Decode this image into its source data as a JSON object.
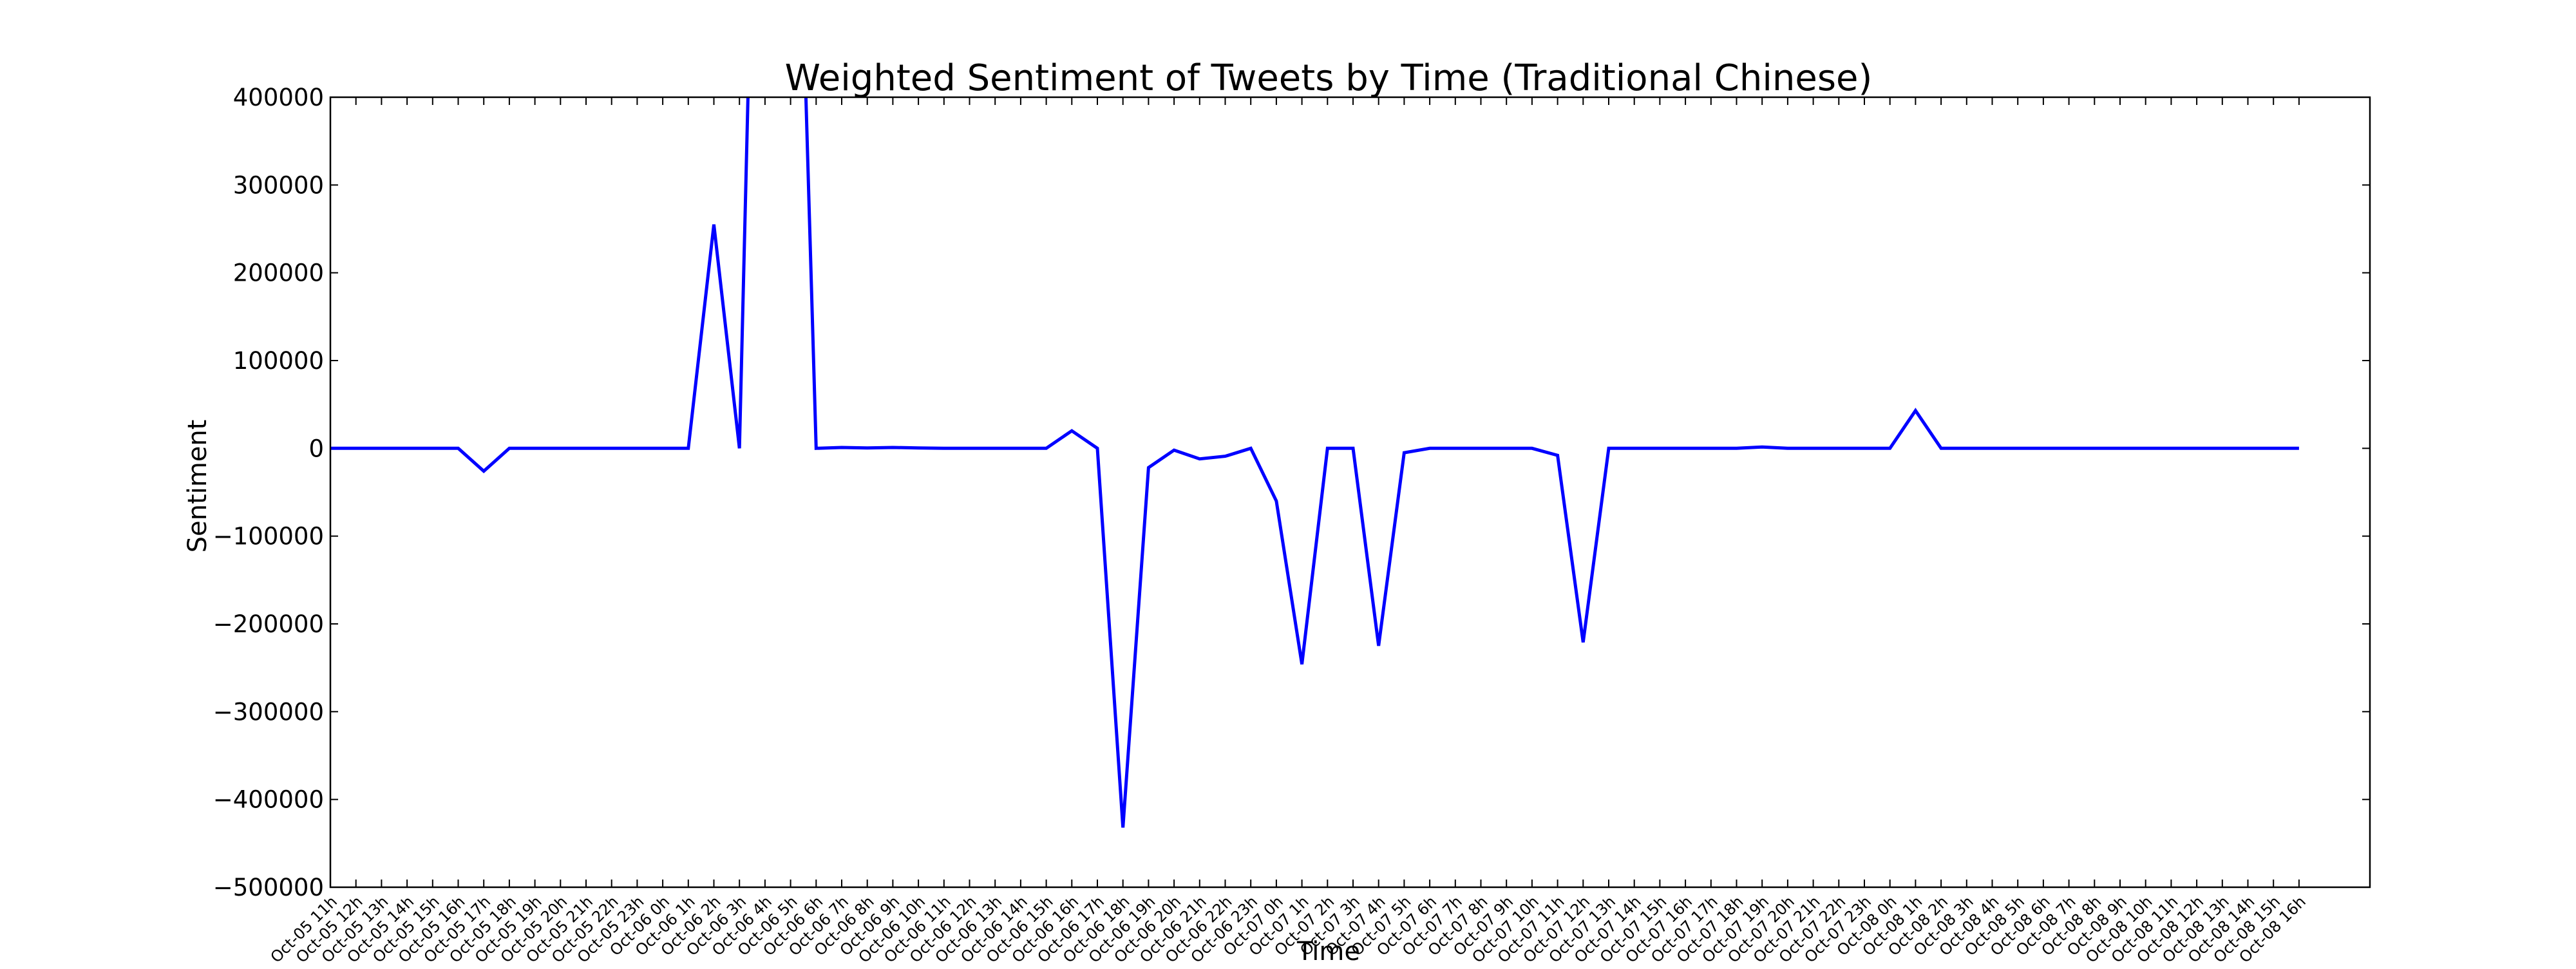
{
  "chart_data": {
    "type": "line",
    "title": "Weighted Sentiment of Tweets by Time (Traditional Chinese)",
    "xlabel": "Time",
    "ylabel": "Sentiment",
    "ylim": [
      -500000,
      400000
    ],
    "yticks": [
      400000,
      300000,
      200000,
      100000,
      0,
      -100000,
      -200000,
      -300000,
      -400000,
      -500000
    ],
    "ytick_labels": [
      "400000",
      "300000",
      "200000",
      "100000",
      "0",
      "−100000",
      "−200000",
      "−300000",
      "−400000",
      "−500000"
    ],
    "grid": false,
    "legend": "none",
    "line_color": "#0000ff",
    "categories": [
      "Oct-05 11h",
      "Oct-05 12h",
      "Oct-05 13h",
      "Oct-05 14h",
      "Oct-05 15h",
      "Oct-05 16h",
      "Oct-05 17h",
      "Oct-05 18h",
      "Oct-05 19h",
      "Oct-05 20h",
      "Oct-05 21h",
      "Oct-05 22h",
      "Oct-05 23h",
      "Oct-06 0h",
      "Oct-06 1h",
      "Oct-06 2h",
      "Oct-06 3h",
      "Oct-06 4h",
      "Oct-06 5h",
      "Oct-06 6h",
      "Oct-06 7h",
      "Oct-06 8h",
      "Oct-06 9h",
      "Oct-06 10h",
      "Oct-06 11h",
      "Oct-06 12h",
      "Oct-06 13h",
      "Oct-06 14h",
      "Oct-06 15h",
      "Oct-06 16h",
      "Oct-06 17h",
      "Oct-06 18h",
      "Oct-06 19h",
      "Oct-06 20h",
      "Oct-06 21h",
      "Oct-06 22h",
      "Oct-06 23h",
      "Oct-07 0h",
      "Oct-07 1h",
      "Oct-07 2h",
      "Oct-07 3h",
      "Oct-07 4h",
      "Oct-07 5h",
      "Oct-07 6h",
      "Oct-07 7h",
      "Oct-07 8h",
      "Oct-07 9h",
      "Oct-07 10h",
      "Oct-07 11h",
      "Oct-07 12h",
      "Oct-07 13h",
      "Oct-07 14h",
      "Oct-07 15h",
      "Oct-07 16h",
      "Oct-07 17h",
      "Oct-07 18h",
      "Oct-07 19h",
      "Oct-07 20h",
      "Oct-07 21h",
      "Oct-07 22h",
      "Oct-07 23h",
      "Oct-08 0h",
      "Oct-08 1h",
      "Oct-08 2h",
      "Oct-08 3h",
      "Oct-08 4h",
      "Oct-08 5h",
      "Oct-08 6h",
      "Oct-08 7h",
      "Oct-08 8h",
      "Oct-08 9h",
      "Oct-08 10h",
      "Oct-08 11h",
      "Oct-08 12h",
      "Oct-08 13h",
      "Oct-08 14h",
      "Oct-08 15h",
      "Oct-08 16h"
    ],
    "series": [
      {
        "values": [
          0,
          0,
          0,
          0,
          0,
          0,
          -26000,
          0,
          0,
          0,
          0,
          0,
          0,
          0,
          0,
          255000,
          0,
          1200000,
          1000000,
          0,
          1000,
          500,
          1000,
          500,
          0,
          0,
          0,
          0,
          0,
          20000,
          0,
          -432000,
          -22000,
          -2000,
          -12000,
          -9000,
          0,
          -60000,
          -246000,
          0,
          0,
          -225000,
          -5000,
          0,
          0,
          0,
          0,
          0,
          -8000,
          -221000,
          0,
          0,
          0,
          0,
          0,
          0,
          1500,
          0,
          0,
          0,
          0,
          0,
          43000,
          0,
          0,
          0,
          0,
          0,
          0,
          0,
          0,
          0,
          0,
          0,
          0,
          0,
          0,
          0
        ]
      }
    ]
  }
}
